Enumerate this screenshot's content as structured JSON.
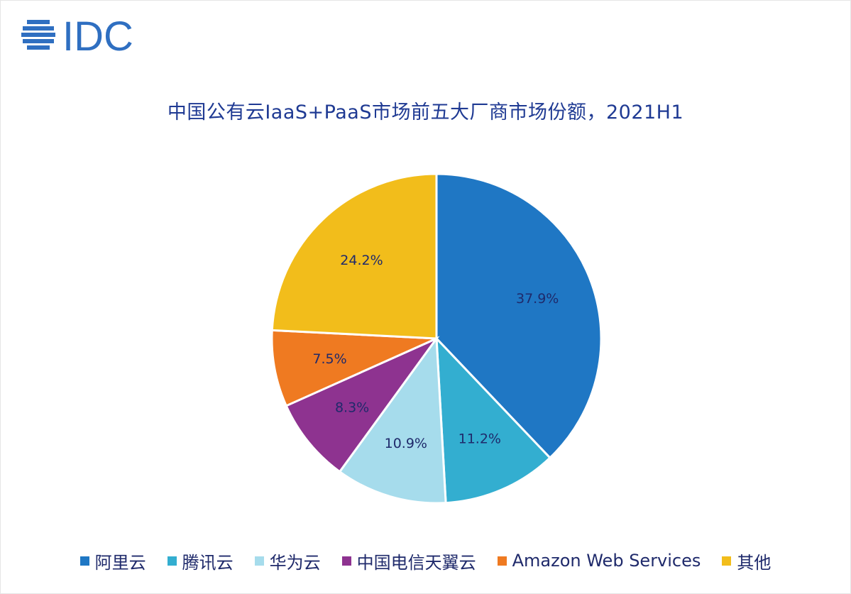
{
  "logo": {
    "text": "IDC",
    "color": "#2f6fc1",
    "icon": "idc-globe-icon"
  },
  "chart_data": {
    "type": "pie",
    "title": "中国公有云IaaS+PaaS市场前五大厂商市场份额，2021H1",
    "categories": [
      "阿里云",
      "腾讯云",
      "华为云",
      "中国电信天翼云",
      "Amazon Web Services",
      "其他"
    ],
    "values": [
      37.9,
      11.2,
      10.9,
      8.3,
      7.5,
      24.2
    ],
    "labels": [
      "37.9%",
      "11.2%",
      "10.9%",
      "8.3%",
      "7.5%",
      "24.2%"
    ],
    "colors": [
      "#1f77c4",
      "#33aed0",
      "#a6dcec",
      "#8e3390",
      "#ef7a21",
      "#f2bd1b"
    ],
    "start": "12 o'clock, clockwise",
    "legend_position": "bottom"
  }
}
